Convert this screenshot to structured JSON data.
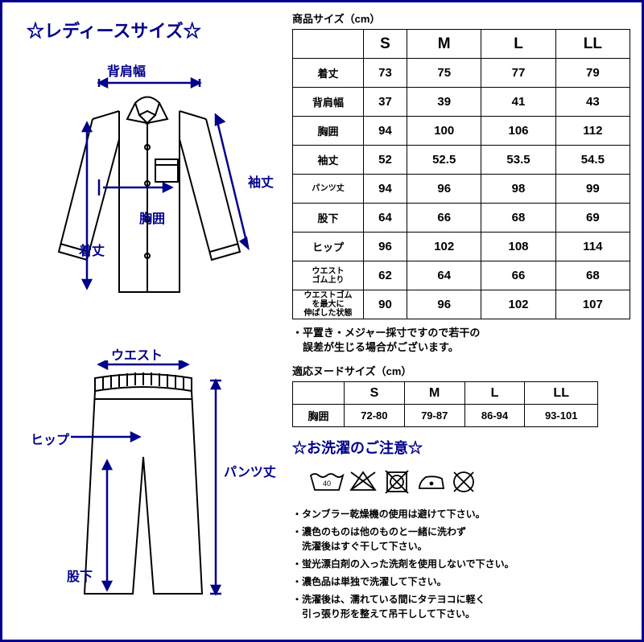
{
  "titleMain": "☆レディースサイズ☆",
  "diagram": {
    "shoulderLabel": "背肩幅",
    "sleeveLabel": "袖丈",
    "chestLabel": "胸囲",
    "lengthLabel": "着丈",
    "waistLabel": "ウエスト",
    "hipLabel": "ヒップ",
    "pantsLengthLabel": "パンツ丈",
    "inseamLabel": "股下"
  },
  "sizeTable": {
    "title": "商品サイズ（cm）",
    "columns": [
      "S",
      "M",
      "L",
      "LL"
    ],
    "rows": [
      {
        "label": "着丈",
        "small": false,
        "values": [
          "73",
          "75",
          "77",
          "79"
        ]
      },
      {
        "label": "背肩幅",
        "small": false,
        "values": [
          "37",
          "39",
          "41",
          "43"
        ]
      },
      {
        "label": "胸囲",
        "small": false,
        "values": [
          "94",
          "100",
          "106",
          "112"
        ]
      },
      {
        "label": "袖丈",
        "small": false,
        "values": [
          "52",
          "52.5",
          "53.5",
          "54.5"
        ]
      },
      {
        "label": "パンツ丈",
        "small": true,
        "values": [
          "94",
          "96",
          "98",
          "99"
        ]
      },
      {
        "label": "股下",
        "small": false,
        "values": [
          "64",
          "66",
          "68",
          "69"
        ]
      },
      {
        "label": "ヒップ",
        "small": false,
        "values": [
          "96",
          "102",
          "108",
          "114"
        ]
      },
      {
        "label": "ウエスト\nゴム上り",
        "small": true,
        "values": [
          "62",
          "64",
          "66",
          "68"
        ]
      },
      {
        "label": "ウエストゴム\nを最大に\n伸ばした状態",
        "small": true,
        "values": [
          "90",
          "96",
          "102",
          "107"
        ]
      }
    ],
    "note": "・平置き・メジャー採寸ですので若干の\n　誤差が生じる場合がございます。"
  },
  "nudeTable": {
    "title": "適応ヌードサイズ（cm）",
    "columns": [
      "S",
      "M",
      "L",
      "LL"
    ],
    "rowLabel": "胸囲",
    "values": [
      "72-80",
      "79-87",
      "86-94",
      "93-101"
    ]
  },
  "wash": {
    "title": "☆お洗濯のご注意☆",
    "items": [
      "・タンブラー乾燥機の使用は避けて下さい。",
      "・濃色のものは他のものと一緒に洗わず\n　洗濯後はすぐ干して下さい。",
      "・蛍光漂白剤の入った洗剤を使用しないで下さい。",
      "・濃色品は単独で洗濯して下さい。",
      "・洗濯後は、濡れている間にタテヨコに軽く\n　引っ張り形を整えて吊干しして下さい。"
    ]
  },
  "colors": {
    "navy": "#00008b",
    "black": "#000000",
    "white": "#ffffff"
  }
}
